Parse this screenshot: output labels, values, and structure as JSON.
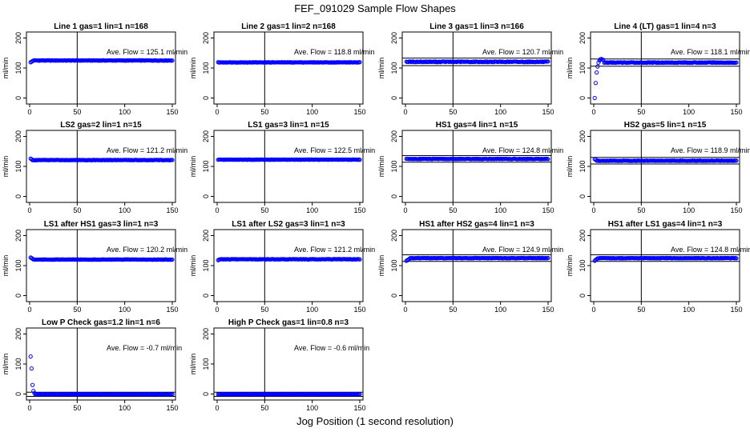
{
  "figure": {
    "title": "FEF_091029  Sample Flow Shapes",
    "xlabel": "Jog Position (1 second resolution)"
  },
  "colors": {
    "points": "#0000ff",
    "axes": "#000000"
  },
  "chart_data": [
    {
      "type": "scatter",
      "title": "Line 1 gas=1 lin=1 n=168",
      "annotation": "Ave. Flow =  125.1  ml/min",
      "ylabel": "ml/min",
      "xlim": [
        0,
        150
      ],
      "ylim": [
        -20,
        220
      ],
      "x_ticks": [
        0,
        50,
        100,
        150
      ],
      "y_ticks": [
        0,
        100,
        200
      ],
      "vline_x": 50,
      "hlines_y": [],
      "start_values": [
        119,
        121,
        123
      ],
      "level": 125.1,
      "noise": 0.8,
      "x_range": [
        1,
        150
      ]
    },
    {
      "type": "scatter",
      "title": "Line 2 gas=1 lin=2 n=168",
      "annotation": "Ave. Flow =  118.8  ml/min",
      "ylabel": "ml/min",
      "xlim": [
        0,
        150
      ],
      "ylim": [
        -20,
        220
      ],
      "x_ticks": [
        0,
        50,
        100,
        150
      ],
      "y_ticks": [
        0,
        100,
        200
      ],
      "vline_x": 50,
      "hlines_y": [],
      "start_values": [],
      "level": 118.8,
      "noise": 0.6,
      "x_range": [
        1,
        150
      ]
    },
    {
      "type": "scatter",
      "title": "Line 3 gas=1 lin=3 n=166",
      "annotation": "Ave. Flow =  120.7  ml/min",
      "ylabel": "ml/min",
      "xlim": [
        0,
        150
      ],
      "ylim": [
        -20,
        220
      ],
      "x_ticks": [
        0,
        50,
        100,
        150
      ],
      "y_ticks": [
        0,
        100,
        200
      ],
      "vline_x": 50,
      "hlines_y": [
        108,
        133
      ],
      "start_values": [],
      "level": 120.7,
      "noise": 1.2,
      "x_range": [
        1,
        150
      ]
    },
    {
      "type": "scatter",
      "title": "Line 4 (LT) gas=1 lin=4 n=3",
      "annotation": "Ave. Flow =  118.1  ml/min",
      "ylabel": "ml/min",
      "xlim": [
        0,
        150
      ],
      "ylim": [
        -20,
        220
      ],
      "x_ticks": [
        0,
        50,
        100,
        150
      ],
      "y_ticks": [
        0,
        100,
        200
      ],
      "vline_x": 50,
      "hlines_y": [
        106,
        130
      ],
      "start_values": [
        0,
        50,
        85,
        105,
        118,
        125,
        129,
        130,
        128,
        127
      ],
      "level": 118.1,
      "noise": 1.0,
      "x_range": [
        1,
        150
      ]
    },
    {
      "type": "scatter",
      "title": "LS2 gas=2 lin=1 n=15",
      "annotation": "Ave. Flow =  121.2  ml/min",
      "ylabel": "ml/min",
      "xlim": [
        0,
        150
      ],
      "ylim": [
        -20,
        220
      ],
      "x_ticks": [
        0,
        50,
        100,
        150
      ],
      "y_ticks": [
        0,
        100,
        200
      ],
      "vline_x": 50,
      "hlines_y": [],
      "start_values": [
        126,
        124
      ],
      "level": 121.2,
      "noise": 0.7,
      "x_range": [
        1,
        150
      ]
    },
    {
      "type": "scatter",
      "title": "LS1 gas=3 lin=1 n=15",
      "annotation": "Ave. Flow =  122.5  ml/min",
      "ylabel": "ml/min",
      "xlim": [
        0,
        150
      ],
      "ylim": [
        -20,
        220
      ],
      "x_ticks": [
        0,
        50,
        100,
        150
      ],
      "y_ticks": [
        0,
        100,
        200
      ],
      "vline_x": 50,
      "hlines_y": [],
      "start_values": [],
      "level": 122.5,
      "noise": 0.6,
      "x_range": [
        1,
        150
      ]
    },
    {
      "type": "scatter",
      "title": "HS1 gas=4 lin=1 n=15",
      "annotation": "Ave. Flow =  124.8  ml/min",
      "ylabel": "ml/min",
      "xlim": [
        0,
        150
      ],
      "ylim": [
        -20,
        220
      ],
      "x_ticks": [
        0,
        50,
        100,
        150
      ],
      "y_ticks": [
        0,
        100,
        200
      ],
      "vline_x": 50,
      "hlines_y": [
        114,
        136
      ],
      "start_values": [],
      "level": 124.8,
      "noise": 0.8,
      "x_range": [
        1,
        150
      ]
    },
    {
      "type": "scatter",
      "title": "HS2 gas=5 lin=1 n=15",
      "annotation": "Ave. Flow =  118.9  ml/min",
      "ylabel": "ml/min",
      "xlim": [
        0,
        150
      ],
      "ylim": [
        -20,
        220
      ],
      "x_ticks": [
        0,
        50,
        100,
        150
      ],
      "y_ticks": [
        0,
        100,
        200
      ],
      "vline_x": 50,
      "hlines_y": [
        108,
        130
      ],
      "start_values": [
        124,
        123
      ],
      "level": 118.9,
      "noise": 0.8,
      "x_range": [
        1,
        150
      ]
    },
    {
      "type": "scatter",
      "title": "LS1 after HS1 gas=3 lin=1 n=3",
      "annotation": "Ave. Flow =  120.2  ml/min",
      "ylabel": "ml/min",
      "xlim": [
        0,
        150
      ],
      "ylim": [
        -20,
        220
      ],
      "x_ticks": [
        0,
        50,
        100,
        150
      ],
      "y_ticks": [
        0,
        100,
        200
      ],
      "vline_x": 50,
      "hlines_y": [],
      "start_values": [
        127,
        125,
        123
      ],
      "level": 120.2,
      "noise": 0.7,
      "x_range": [
        1,
        150
      ]
    },
    {
      "type": "scatter",
      "title": "LS1 after LS2 gas=3 lin=1 n=3",
      "annotation": "Ave. Flow =  121.2  ml/min",
      "ylabel": "ml/min",
      "xlim": [
        0,
        150
      ],
      "ylim": [
        -20,
        220
      ],
      "x_ticks": [
        0,
        50,
        100,
        150
      ],
      "y_ticks": [
        0,
        100,
        200
      ],
      "vline_x": 50,
      "hlines_y": [],
      "start_values": [
        118,
        120
      ],
      "level": 121.2,
      "noise": 0.8,
      "x_range": [
        1,
        150
      ]
    },
    {
      "type": "scatter",
      "title": "HS1 after HS2 gas=4 lin=1 n=3",
      "annotation": "Ave. Flow =  124.9  ml/min",
      "ylabel": "ml/min",
      "xlim": [
        0,
        150
      ],
      "ylim": [
        -20,
        220
      ],
      "x_ticks": [
        0,
        50,
        100,
        150
      ],
      "y_ticks": [
        0,
        100,
        200
      ],
      "vline_x": 50,
      "hlines_y": [
        114,
        136
      ],
      "start_values": [
        116,
        118,
        120,
        122
      ],
      "level": 124.9,
      "noise": 0.8,
      "x_range": [
        1,
        150
      ]
    },
    {
      "type": "scatter",
      "title": "HS1 after LS1 gas=4 lin=1 n=3",
      "annotation": "Ave. Flow =  124.8  ml/min",
      "ylabel": "ml/min",
      "xlim": [
        0,
        150
      ],
      "ylim": [
        -20,
        220
      ],
      "x_ticks": [
        0,
        50,
        100,
        150
      ],
      "y_ticks": [
        0,
        100,
        200
      ],
      "vline_x": 50,
      "hlines_y": [
        114,
        136
      ],
      "start_values": [
        116,
        119,
        121
      ],
      "level": 124.8,
      "noise": 0.8,
      "x_range": [
        1,
        150
      ]
    },
    {
      "type": "scatter",
      "title": "Low P Check gas=1.2 lin=1 n=6",
      "annotation": "Ave. Flow =  -0.7  ml/min",
      "ylabel": "ml/min",
      "xlim": [
        0,
        150
      ],
      "ylim": [
        -20,
        220
      ],
      "x_ticks": [
        0,
        50,
        100,
        150
      ],
      "y_ticks": [
        0,
        100,
        200
      ],
      "vline_x": 50,
      "hlines_y": [
        -8,
        6
      ],
      "start_values": [
        125,
        85,
        30,
        10,
        3
      ],
      "level": -0.7,
      "noise": 0.6,
      "x_range": [
        1,
        150
      ]
    },
    {
      "type": "scatter",
      "title": "High P Check gas=1 lin=0.8 n=3",
      "annotation": "Ave. Flow =  -0.6  ml/min",
      "ylabel": "ml/min",
      "xlim": [
        0,
        150
      ],
      "ylim": [
        -20,
        220
      ],
      "x_ticks": [
        0,
        50,
        100,
        150
      ],
      "y_ticks": [
        0,
        100,
        200
      ],
      "vline_x": 50,
      "hlines_y": [
        -8,
        6
      ],
      "start_values": [],
      "level": -0.6,
      "noise": 0.5,
      "x_range": [
        1,
        150
      ]
    }
  ]
}
